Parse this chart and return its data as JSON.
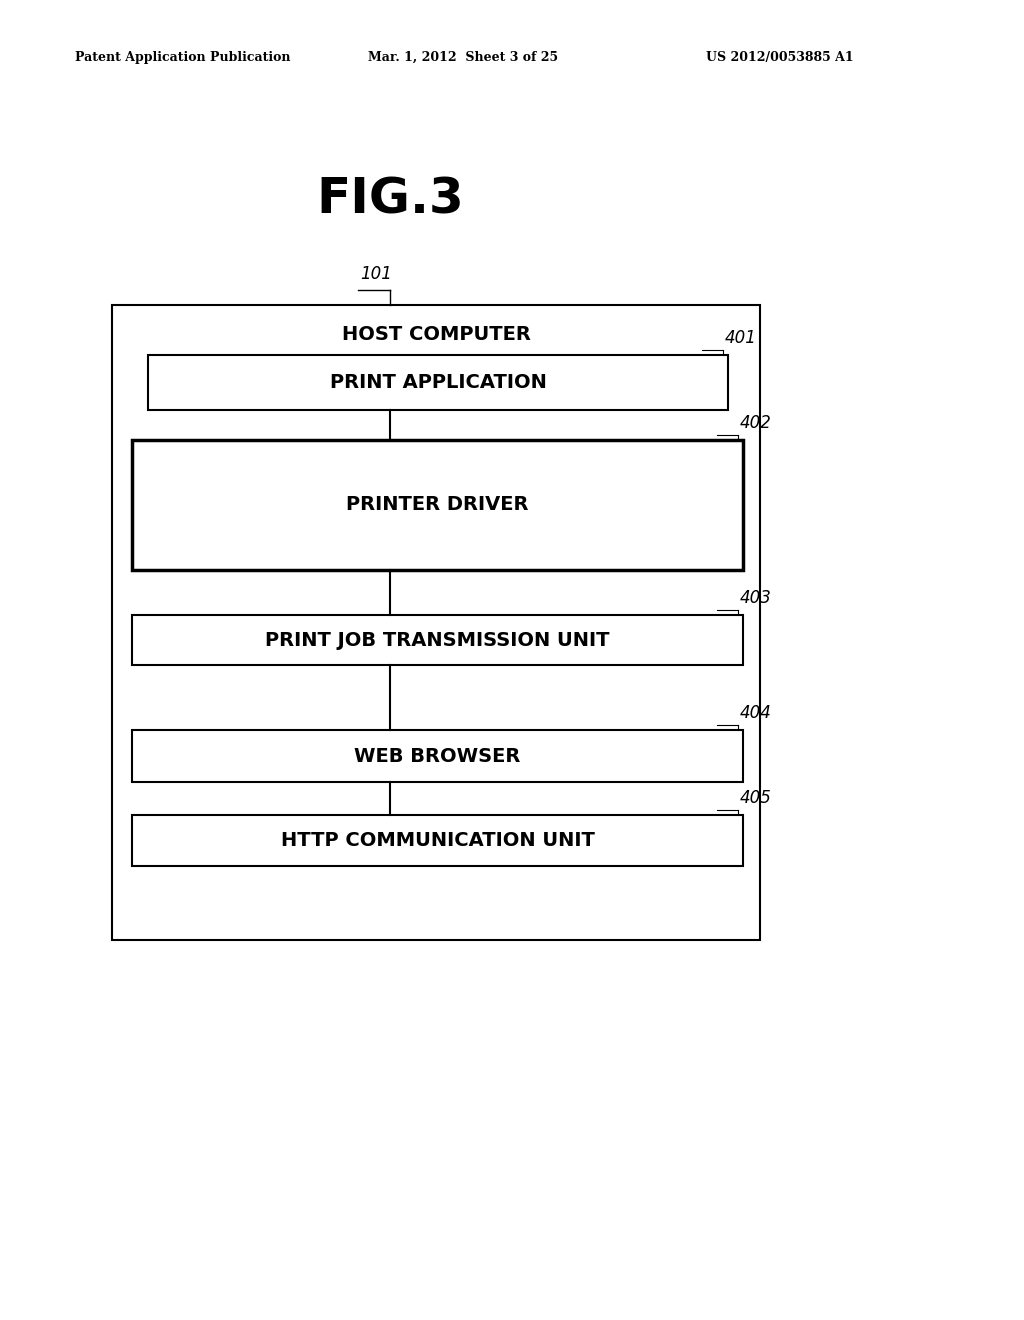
{
  "bg_color": "#ffffff",
  "title": "FIG.3",
  "title_fontsize": 36,
  "header_text": "Patent Application Publication",
  "header_date": "Mar. 1, 2012  Sheet 3 of 25",
  "header_patent": "US 2012/0053885 A1",
  "outer_label": "HOST COMPUTER",
  "outer_label_ref": "101",
  "boxes": [
    {
      "label": "PRINT APPLICATION",
      "ref": "401",
      "thick": false
    },
    {
      "label": "PRINTER DRIVER",
      "ref": "402",
      "thick": true
    },
    {
      "label": "PRINT JOB TRANSMISSION UNIT",
      "ref": "403",
      "thick": false
    },
    {
      "label": "WEB BROWSER",
      "ref": "404",
      "thick": false
    },
    {
      "label": "HTTP COMMUNICATION UNIT",
      "ref": "405",
      "thick": false
    }
  ],
  "text_fontsize": 14,
  "ref_fontsize": 12,
  "host_fontsize": 14,
  "lw_outer": 1.5,
  "lw_inner": 1.5,
  "lw_inner_thick": 2.5
}
